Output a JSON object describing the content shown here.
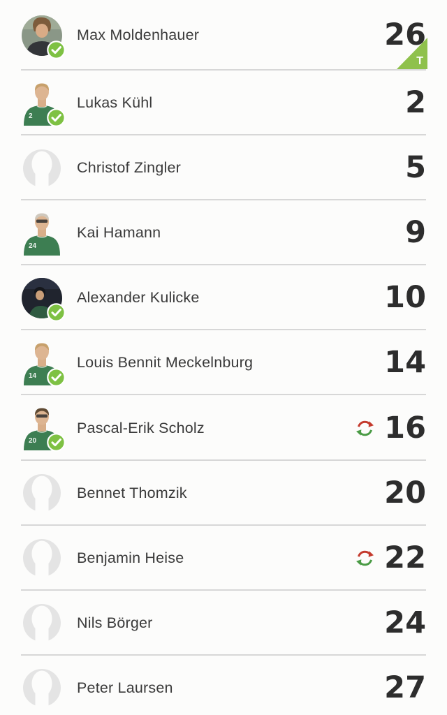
{
  "colors": {
    "background": "#fcfcfb",
    "divider": "#d7d7d7",
    "name_text": "#3a3a3a",
    "number_text": "#2d2d2d",
    "goalkeeper_badge_green": "#8fc14c",
    "confirmed_badge_green": "#7ec143",
    "substitution_out_red": "#c43a2d",
    "substitution_in_green": "#4a9b45",
    "placeholder_gray": "#e4e4e4",
    "jersey_green": "#3d7e52"
  },
  "icons": {
    "substitution": "circular-swap-arrows-icon",
    "confirmed": "check-circle-icon",
    "goalkeeper": "corner-triangle-badge"
  },
  "list": {
    "goalkeeper_badge": "T",
    "players": [
      {
        "name": "Max Moldenhauer",
        "number": "26",
        "avatar_type": "photo-green",
        "confirmed": true,
        "goalkeeper": true,
        "substituted": false,
        "jersey_number": "",
        "glasses": false,
        "hair": "#7d5c3c"
      },
      {
        "name": "Lukas Kühl",
        "number": "2",
        "avatar_type": "bust",
        "confirmed": true,
        "goalkeeper": false,
        "substituted": false,
        "jersey_number": "2",
        "glasses": false,
        "hair": "#c7a06b"
      },
      {
        "name": "Christof Zingler",
        "number": "5",
        "avatar_type": "placeholder",
        "confirmed": false,
        "goalkeeper": false,
        "substituted": false,
        "jersey_number": "",
        "glasses": false,
        "hair": ""
      },
      {
        "name": "Kai Hamann",
        "number": "9",
        "avatar_type": "bust",
        "confirmed": false,
        "goalkeeper": false,
        "substituted": false,
        "jersey_number": "24",
        "glasses": true,
        "hair": "#cfc8bd"
      },
      {
        "name": "Alexander Kulicke",
        "number": "10",
        "avatar_type": "photo-dark",
        "confirmed": true,
        "goalkeeper": false,
        "substituted": false,
        "jersey_number": "",
        "glasses": false,
        "hair": "#15171c"
      },
      {
        "name": "Louis Bennit Meckelnburg",
        "number": "14",
        "avatar_type": "bust",
        "confirmed": true,
        "goalkeeper": false,
        "substituted": false,
        "jersey_number": "14",
        "glasses": false,
        "hair": "#c7a06b"
      },
      {
        "name": "Pascal-Erik Scholz",
        "number": "16",
        "avatar_type": "bust",
        "confirmed": true,
        "goalkeeper": false,
        "substituted": true,
        "jersey_number": "20",
        "glasses": true,
        "hair": "#5f4a33"
      },
      {
        "name": "Bennet Thomzik",
        "number": "20",
        "avatar_type": "placeholder",
        "confirmed": false,
        "goalkeeper": false,
        "substituted": false,
        "jersey_number": "",
        "glasses": false,
        "hair": ""
      },
      {
        "name": "Benjamin Heise",
        "number": "22",
        "avatar_type": "placeholder",
        "confirmed": false,
        "goalkeeper": false,
        "substituted": true,
        "jersey_number": "",
        "glasses": false,
        "hair": ""
      },
      {
        "name": "Nils Börger",
        "number": "24",
        "avatar_type": "placeholder",
        "confirmed": false,
        "goalkeeper": false,
        "substituted": false,
        "jersey_number": "",
        "glasses": false,
        "hair": ""
      },
      {
        "name": "Peter Laursen",
        "number": "27",
        "avatar_type": "placeholder",
        "confirmed": false,
        "goalkeeper": false,
        "substituted": false,
        "jersey_number": "",
        "glasses": false,
        "hair": ""
      }
    ]
  }
}
